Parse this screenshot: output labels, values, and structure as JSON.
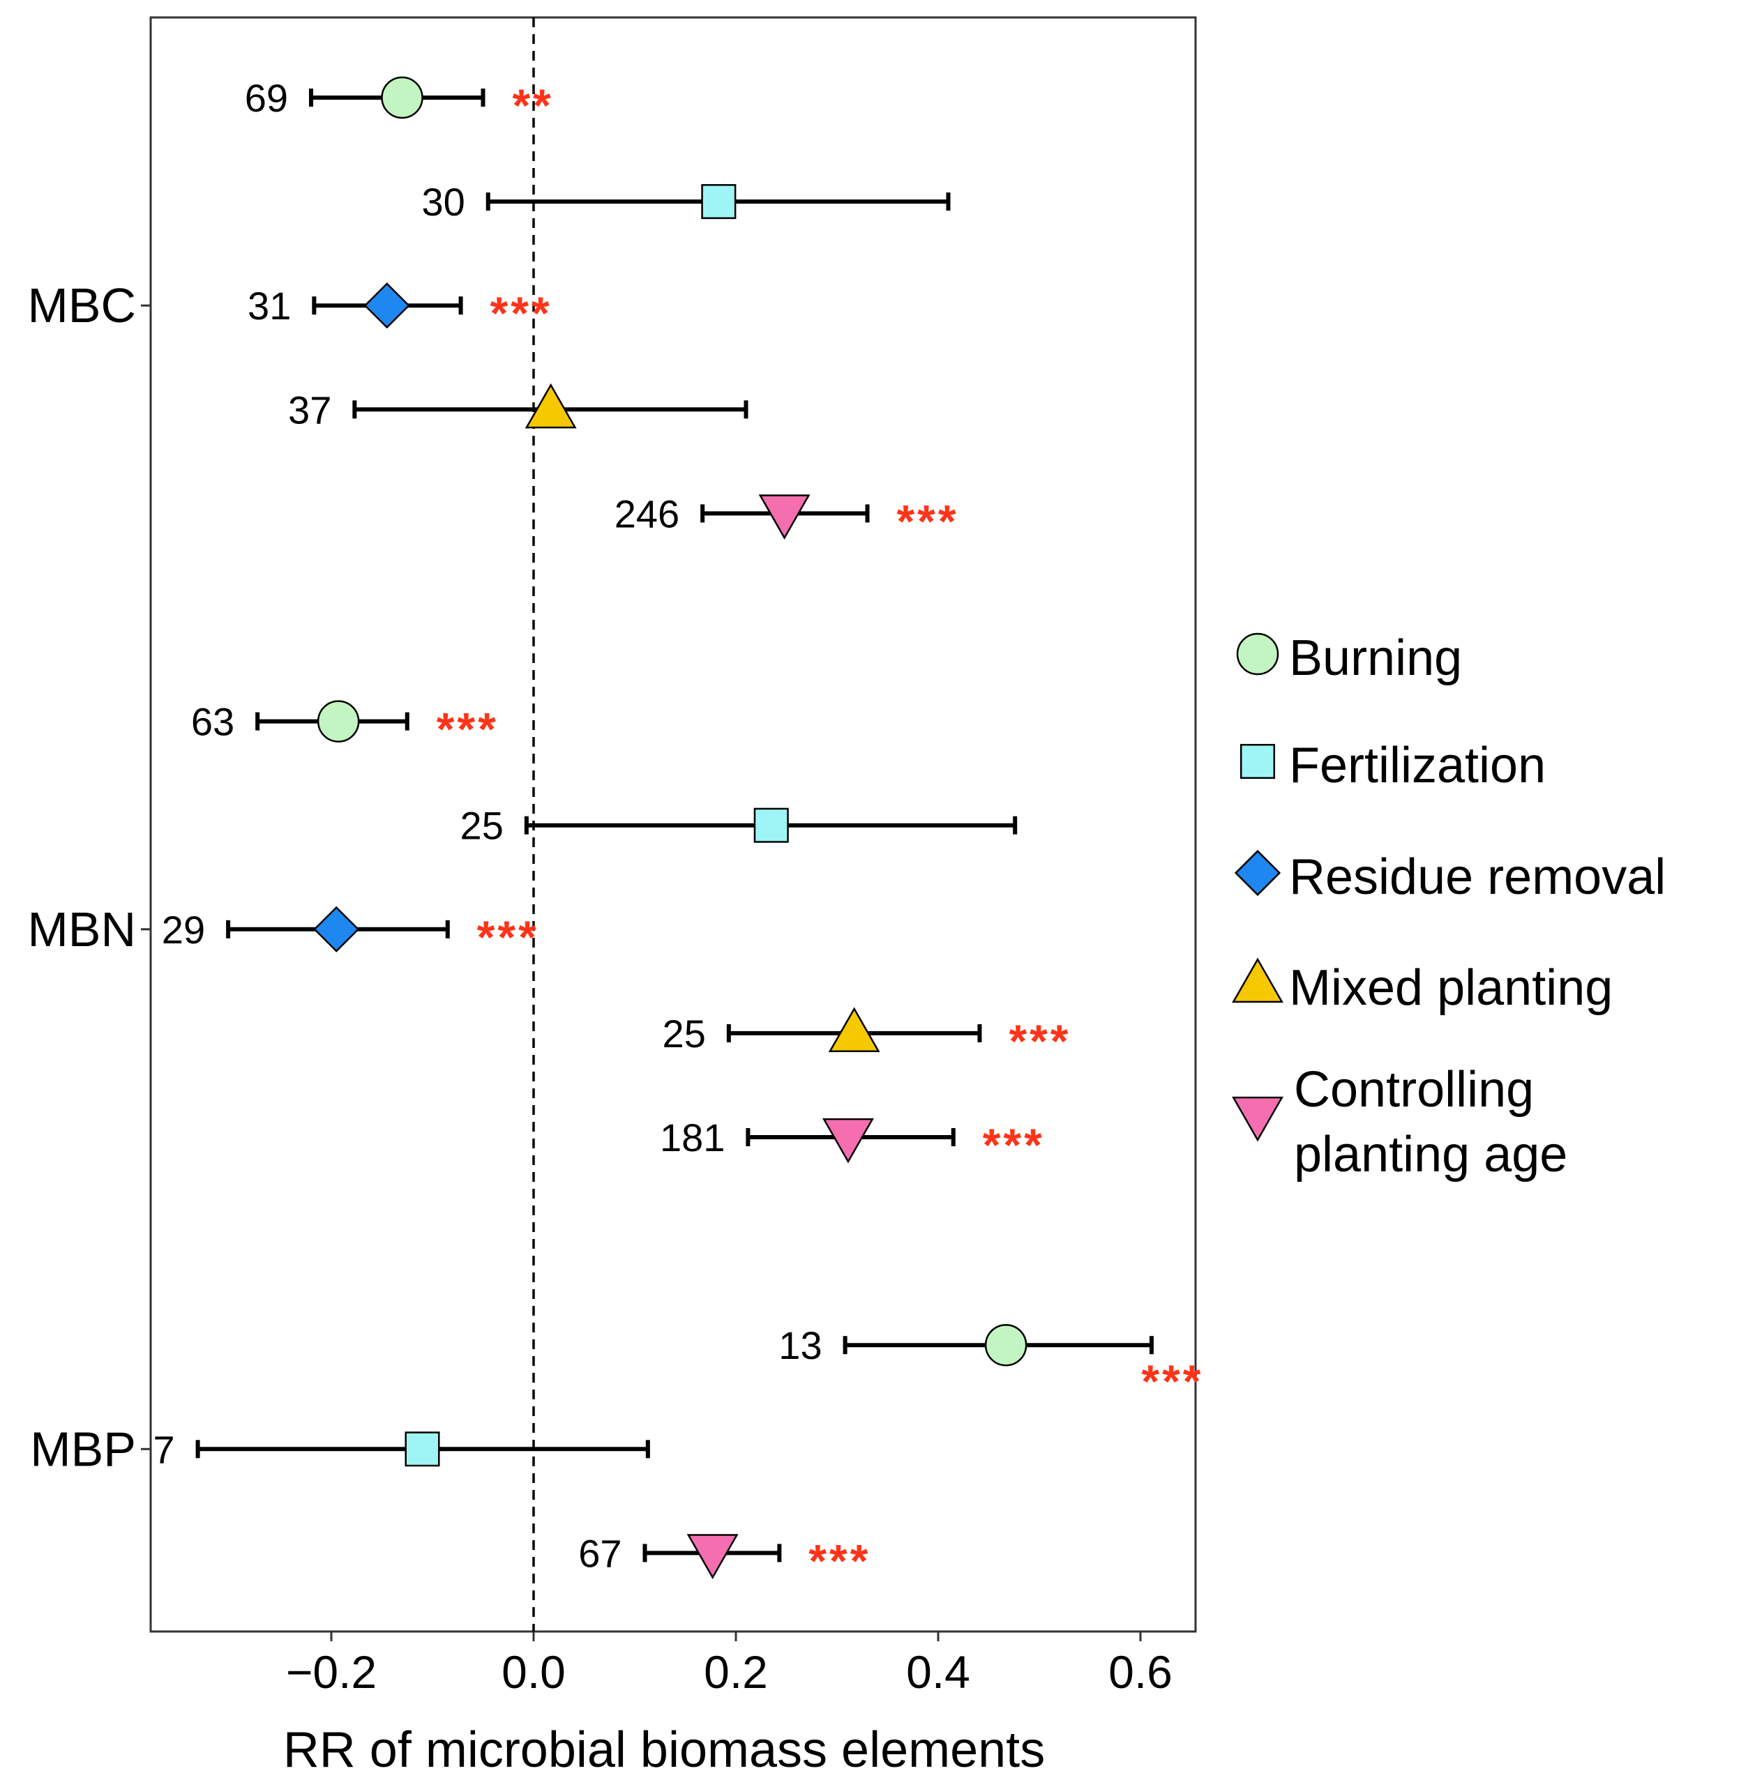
{
  "chart_data": {
    "type": "forest",
    "xlabel": "RR of microbial biomass elements",
    "ylabel": "",
    "xlim": [
      -0.38,
      0.655
    ],
    "x_ticks": [
      -0.2,
      0.0,
      0.2,
      0.4,
      0.6
    ],
    "x_tick_labels": [
      "−0.2",
      "0.0",
      "0.2",
      "0.4",
      "0.6"
    ],
    "reference_line": 0.0,
    "groups": [
      {
        "name": "MBC",
        "label": "MBC"
      },
      {
        "name": "MBN",
        "label": "MBN"
      },
      {
        "name": "MBP",
        "label": "MBP"
      }
    ],
    "series": [
      {
        "name": "Burning",
        "label": "Burning",
        "marker": "circle",
        "color": "#c2f5c2"
      },
      {
        "name": "Fertilization",
        "label": "Fertilization",
        "marker": "square",
        "color": "#9ef5f5"
      },
      {
        "name": "Residue removal",
        "label": "Residue removal",
        "marker": "diamond",
        "color": "#1e88f0"
      },
      {
        "name": "Mixed planting",
        "label": "Mixed planting",
        "marker": "triangle-up",
        "color": "#f5c800"
      },
      {
        "name": "Controlling planting age",
        "label_line1": "Controlling",
        "label_line2": "planting age",
        "marker": "triangle-down",
        "color": "#f56fb0"
      }
    ],
    "points": [
      {
        "group": "MBC",
        "treatment": "Burning",
        "row": 1,
        "mean": -0.13,
        "ci_low": -0.22,
        "ci_high": -0.05,
        "n": "69",
        "significance": "**"
      },
      {
        "group": "MBC",
        "treatment": "Fertilization",
        "row": 2,
        "mean": 0.183,
        "ci_low": -0.045,
        "ci_high": 0.41,
        "n": "30",
        "significance": ""
      },
      {
        "group": "MBC",
        "treatment": "Residue removal",
        "row": 3,
        "mean": -0.145,
        "ci_low": -0.217,
        "ci_high": -0.072,
        "n": "31",
        "significance": "***"
      },
      {
        "group": "MBC",
        "treatment": "Mixed planting",
        "row": 4,
        "mean": 0.017,
        "ci_low": -0.177,
        "ci_high": 0.21,
        "n": "37",
        "significance": ""
      },
      {
        "group": "MBC",
        "treatment": "Controlling planting age",
        "row": 5,
        "mean": 0.248,
        "ci_low": 0.167,
        "ci_high": 0.33,
        "n": "246",
        "significance": "***"
      },
      {
        "group": "MBN",
        "treatment": "Burning",
        "row": 7,
        "mean": -0.193,
        "ci_low": -0.273,
        "ci_high": -0.125,
        "n": "63",
        "significance": "***"
      },
      {
        "group": "MBN",
        "treatment": "Fertilization",
        "row": 8,
        "mean": 0.235,
        "ci_low": -0.007,
        "ci_high": 0.476,
        "n": "25",
        "significance": ""
      },
      {
        "group": "MBN",
        "treatment": "Residue removal",
        "row": 9,
        "mean": -0.195,
        "ci_low": -0.302,
        "ci_high": -0.085,
        "n": "29",
        "significance": "***"
      },
      {
        "group": "MBN",
        "treatment": "Mixed planting",
        "row": 10,
        "mean": 0.317,
        "ci_low": 0.193,
        "ci_high": 0.441,
        "n": "25",
        "significance": "***"
      },
      {
        "group": "MBN",
        "treatment": "Controlling planting age",
        "row": 11,
        "mean": 0.311,
        "ci_low": 0.212,
        "ci_high": 0.415,
        "n": "181",
        "significance": "***"
      },
      {
        "group": "MBP",
        "treatment": "Burning",
        "row": 13,
        "mean": 0.467,
        "ci_low": 0.308,
        "ci_high": 0.611,
        "n": "13",
        "significance": "***",
        "sig_below": true
      },
      {
        "group": "MBP",
        "treatment": "Fertilization",
        "row": 14,
        "mean": -0.11,
        "ci_low": -0.332,
        "ci_high": 0.113,
        "n": "7",
        "significance": ""
      },
      {
        "group": "MBP",
        "treatment": "Controlling planting age",
        "row": 15,
        "mean": 0.177,
        "ci_low": 0.11,
        "ci_high": 0.243,
        "n": "67",
        "significance": "***"
      }
    ],
    "legend": "right"
  }
}
